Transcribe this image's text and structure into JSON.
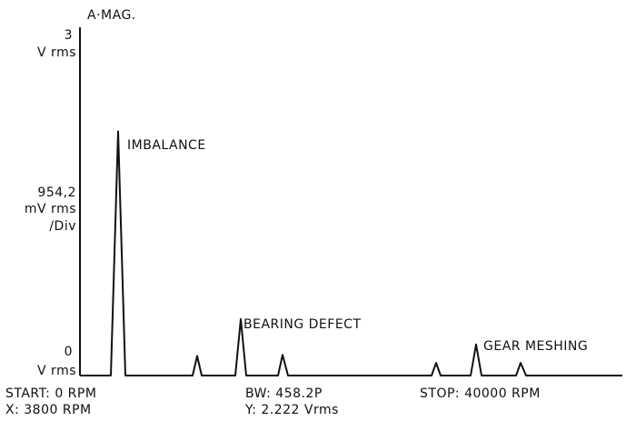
{
  "chart_data": {
    "type": "line",
    "title": "A·MAG.",
    "y_unit_top": "V rms",
    "y_unit_bottom": "V rms",
    "scale_label": [
      "954,2",
      "mV rms",
      "/Div"
    ],
    "ylim": [
      0,
      3
    ],
    "yticks": [
      0,
      3
    ],
    "xlim": [
      0,
      40000
    ],
    "footer": {
      "start": "START: 0  RPM",
      "marker_x": "X: 3800 RPM",
      "bw": "BW: 458.2P",
      "marker_y": "Y: 2.222  Vrms",
      "stop": "STOP: 40000  RPM"
    },
    "annotations": [
      "IMBALANCE",
      "BEARING DEFECT",
      "GEAR MESHING"
    ],
    "series": [
      {
        "name": "A·MAG.",
        "color": "#111111",
        "x": [
          0,
          2278,
          2814,
          3350,
          8308,
          8643,
          8978,
          11457,
          11859,
          12261,
          14606,
          14941,
          15343,
          25930,
          26265,
          26600,
          28811,
          29213,
          29615,
          32161,
          32496,
          32898,
          40000
        ],
        "values": [
          0,
          0,
          2.12,
          0,
          0,
          0.17,
          0,
          0,
          0.49,
          0,
          0,
          0.18,
          0,
          0,
          0.11,
          0,
          0,
          0.27,
          0,
          0,
          0.11,
          0,
          0
        ]
      }
    ]
  }
}
